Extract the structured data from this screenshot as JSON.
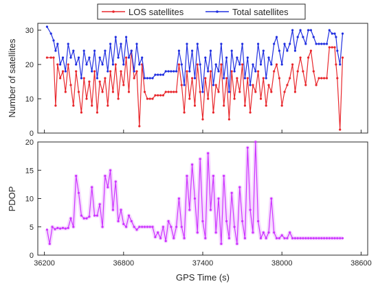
{
  "chart_data": [
    {
      "type": "line",
      "ylabel": "Number of satellites",
      "xlim": [
        36150,
        38650
      ],
      "ylim": [
        0,
        32
      ],
      "xticks": [
        36200,
        36800,
        37400,
        38000,
        38600
      ],
      "yticks": [
        0,
        10,
        20,
        30
      ],
      "ytick_labels": [
        "0",
        "10",
        "20",
        "30"
      ],
      "grid": false,
      "legend": "top-center",
      "series": [
        {
          "name": "LOS satellites",
          "color": "#e8262b",
          "x": [
            36220,
            36250,
            36270,
            36285,
            36300,
            36320,
            36340,
            36360,
            36380,
            36400,
            36420,
            36440,
            36460,
            36480,
            36500,
            36520,
            36540,
            36560,
            36580,
            36600,
            36620,
            36640,
            36660,
            36680,
            36700,
            36720,
            36740,
            36760,
            36780,
            36800,
            36820,
            36840,
            36860,
            36880,
            36900,
            36920,
            36940,
            36960,
            36980,
            37000,
            37020,
            37040,
            37060,
            37080,
            37100,
            37120,
            37140,
            37160,
            37180,
            37200,
            37220,
            37240,
            37260,
            37280,
            37300,
            37320,
            37340,
            37360,
            37380,
            37400,
            37420,
            37440,
            37460,
            37480,
            37500,
            37520,
            37540,
            37560,
            37580,
            37600,
            37620,
            37640,
            37660,
            37680,
            37700,
            37720,
            37740,
            37760,
            37780,
            37800,
            37820,
            37840,
            37860,
            37880,
            37900,
            37920,
            37940,
            37960,
            37980,
            38000,
            38020,
            38040,
            38060,
            38080,
            38100,
            38120,
            38140,
            38160,
            38180,
            38200,
            38220,
            38240,
            38260,
            38280,
            38300,
            38320,
            38340,
            38360,
            38380,
            38400,
            38410,
            38420,
            38440,
            38460
          ],
          "y": [
            22,
            22,
            22,
            8,
            20,
            16,
            18,
            12,
            20,
            14,
            8,
            18,
            12,
            6,
            16,
            10,
            15,
            8,
            18,
            6,
            15,
            12,
            16,
            8,
            18,
            12,
            20,
            10,
            18,
            14,
            22,
            12,
            24,
            16,
            18,
            2,
            20,
            12,
            10,
            10,
            10,
            11,
            11,
            11,
            11,
            12,
            12,
            12,
            12,
            12,
            20,
            14,
            6,
            18,
            10,
            16,
            8,
            20,
            12,
            4,
            16,
            10,
            18,
            6,
            14,
            12,
            20,
            8,
            16,
            4,
            18,
            10,
            16,
            12,
            20,
            8,
            16,
            6,
            14,
            12,
            18,
            10,
            16,
            8,
            14,
            12,
            18,
            20,
            16,
            8,
            12,
            14,
            16,
            20,
            12,
            18,
            22,
            18,
            14,
            22,
            24,
            18,
            14,
            16,
            16,
            16,
            16,
            25,
            25,
            25,
            20,
            16,
            1,
            22
          ],
          "marker": "dot"
        },
        {
          "name": "Total satellites",
          "color": "#1f2ee0",
          "x": [
            36220,
            36250,
            36270,
            36285,
            36300,
            36320,
            36340,
            36360,
            36380,
            36400,
            36420,
            36440,
            36460,
            36480,
            36500,
            36520,
            36540,
            36560,
            36580,
            36600,
            36620,
            36640,
            36660,
            36680,
            36700,
            36720,
            36740,
            36760,
            36780,
            36800,
            36820,
            36840,
            36860,
            36880,
            36900,
            36920,
            36940,
            36960,
            36980,
            37000,
            37020,
            37040,
            37060,
            37080,
            37100,
            37120,
            37140,
            37160,
            37180,
            37200,
            37220,
            37240,
            37260,
            37280,
            37300,
            37320,
            37340,
            37360,
            37380,
            37400,
            37420,
            37440,
            37460,
            37480,
            37500,
            37520,
            37540,
            37560,
            37580,
            37600,
            37620,
            37640,
            37660,
            37680,
            37700,
            37720,
            37740,
            37760,
            37780,
            37800,
            37820,
            37840,
            37860,
            37880,
            37900,
            37920,
            37940,
            37960,
            37980,
            38000,
            38020,
            38040,
            38060,
            38080,
            38100,
            38120,
            38140,
            38160,
            38180,
            38200,
            38220,
            38240,
            38260,
            38280,
            38300,
            38320,
            38340,
            38360,
            38380,
            38400,
            38410,
            38420,
            38440,
            38460
          ],
          "y": [
            31,
            29,
            27,
            24,
            26,
            20,
            22,
            18,
            26,
            22,
            24,
            20,
            22,
            16,
            24,
            20,
            22,
            18,
            24,
            16,
            22,
            20,
            24,
            18,
            26,
            20,
            28,
            22,
            26,
            20,
            28,
            22,
            24,
            18,
            26,
            20,
            22,
            16,
            16,
            16,
            16,
            17,
            17,
            17,
            17,
            18,
            18,
            18,
            18,
            18,
            24,
            20,
            14,
            26,
            18,
            24,
            16,
            26,
            20,
            12,
            22,
            18,
            24,
            14,
            20,
            18,
            26,
            16,
            22,
            12,
            24,
            18,
            22,
            20,
            26,
            16,
            22,
            14,
            20,
            18,
            26,
            20,
            24,
            16,
            22,
            20,
            26,
            28,
            24,
            20,
            26,
            24,
            26,
            30,
            24,
            28,
            30,
            28,
            26,
            30,
            30,
            28,
            26,
            26,
            26,
            26,
            26,
            30,
            29,
            29,
            28,
            24,
            20,
            29
          ],
          "marker": "dot"
        }
      ]
    },
    {
      "type": "line",
      "xlabel": "GPS Time (s)",
      "ylabel": "PDOP",
      "xlim": [
        36150,
        38650
      ],
      "ylim": [
        0,
        20
      ],
      "xticks": [
        36200,
        36800,
        37400,
        38000,
        38600
      ],
      "xtick_labels": [
        "36200",
        "36800",
        "37400",
        "38000",
        "38600"
      ],
      "yticks": [
        0,
        5,
        10,
        15,
        20
      ],
      "ytick_labels": [
        "0",
        "5",
        "10",
        "15",
        "20"
      ],
      "grid": false,
      "series": [
        {
          "color": "#cc33ff",
          "x": [
            36220,
            36240,
            36260,
            36280,
            36300,
            36320,
            36340,
            36360,
            36380,
            36400,
            36420,
            36440,
            36460,
            36480,
            36500,
            36520,
            36540,
            36560,
            36580,
            36600,
            36620,
            36640,
            36660,
            36680,
            36700,
            36720,
            36740,
            36760,
            36780,
            36800,
            36820,
            36840,
            36860,
            36880,
            36900,
            36920,
            36940,
            36960,
            36980,
            37000,
            37020,
            37040,
            37060,
            37080,
            37100,
            37120,
            37140,
            37160,
            37180,
            37200,
            37220,
            37240,
            37260,
            37280,
            37300,
            37320,
            37340,
            37360,
            37380,
            37400,
            37420,
            37440,
            37460,
            37480,
            37500,
            37520,
            37540,
            37560,
            37580,
            37600,
            37620,
            37640,
            37660,
            37680,
            37700,
            37720,
            37740,
            37760,
            37780,
            37800,
            37820,
            37840,
            37860,
            37880,
            37900,
            37920,
            37940,
            37960,
            37980,
            38000,
            38020,
            38040,
            38060,
            38080,
            38100,
            38120,
            38140,
            38160,
            38180,
            38200,
            38220,
            38240,
            38260,
            38280,
            38300,
            38320,
            38340,
            38360,
            38380,
            38400,
            38420,
            38440,
            38460
          ],
          "y": [
            4.5,
            2,
            5,
            4.6,
            4.8,
            4.7,
            4.8,
            4.7,
            4.8,
            6.5,
            5,
            14,
            11,
            7,
            6.5,
            6.5,
            6.8,
            12,
            7,
            7,
            9,
            5,
            14,
            12,
            15,
            8,
            13,
            6,
            8,
            5.5,
            5,
            7,
            6,
            5,
            4.5,
            5,
            5,
            5,
            5,
            5,
            5,
            3.2,
            4,
            3,
            5,
            2.5,
            6,
            5,
            3,
            5,
            10,
            5,
            3,
            14,
            8,
            16,
            10,
            4,
            17,
            6,
            3,
            18,
            8,
            14,
            4,
            10,
            2,
            14,
            6,
            3,
            11,
            5,
            2,
            12,
            6,
            3,
            19,
            8,
            4,
            20,
            6,
            3,
            4,
            3,
            4,
            10,
            4,
            3,
            3,
            3.5,
            3,
            3,
            4,
            3,
            3,
            3,
            3,
            3,
            3,
            3,
            3,
            3,
            3,
            3,
            3,
            3,
            3,
            3,
            3,
            3,
            3,
            3,
            3
          ],
          "marker": "dot"
        }
      ]
    }
  ]
}
